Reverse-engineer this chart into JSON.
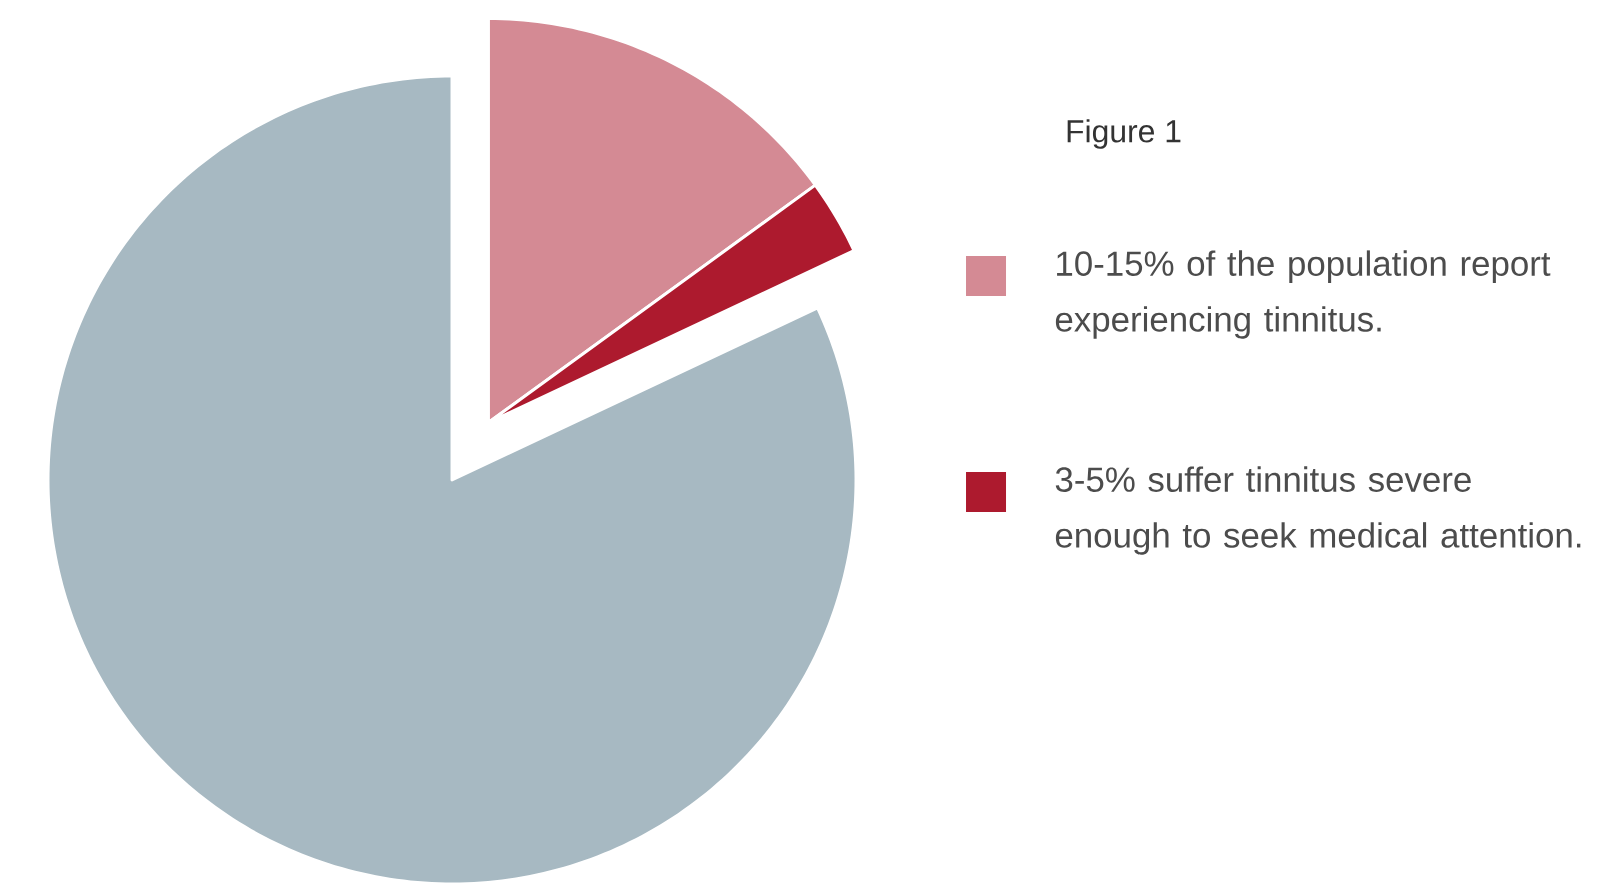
{
  "chart_data": {
    "type": "pie",
    "title": "Figure 1",
    "categories": [
      "10-15% of the population report experiencing tinnitus.",
      "3-5% suffer tinnitus severe enough to seek medical attention.",
      null
    ],
    "values": [
      15,
      3,
      82
    ],
    "colors": [
      "#d48a94",
      "#ad1a2e",
      "#a7b9c2"
    ],
    "legend": "right"
  }
}
